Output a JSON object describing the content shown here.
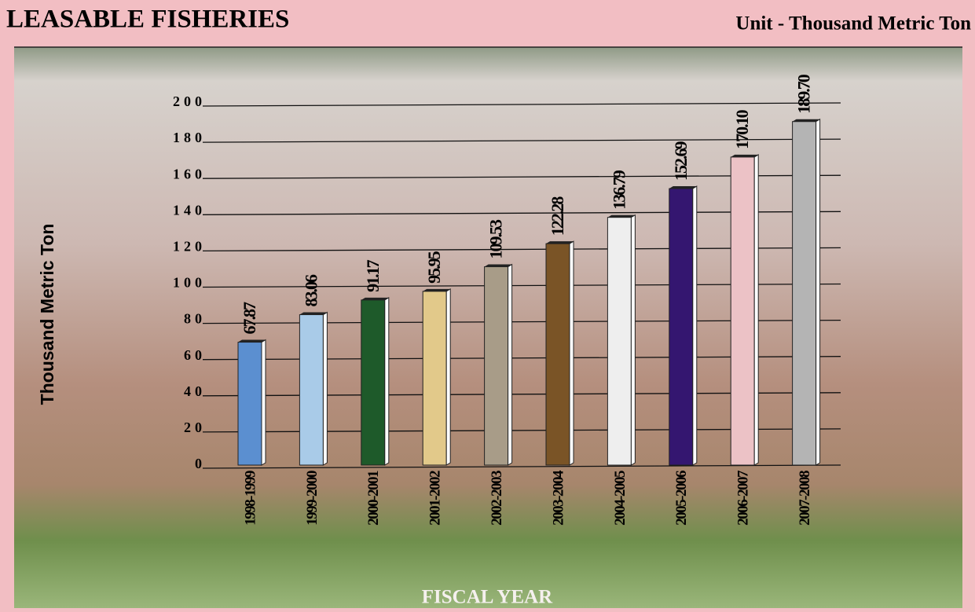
{
  "chart_data": {
    "type": "bar",
    "title": "LEASABLE FISHERIES",
    "subtitle": "Unit - Thousand  Metric Ton",
    "y_label": "Thousand Metric Ton",
    "x_label": "FISCAL YEAR",
    "categories": [
      "1998-1999",
      "1999-2000",
      "2000-2001",
      "2001-2002",
      "2002-2003",
      "2003-2004",
      "2004-2005",
      "2005-2006",
      "2006-2007",
      "2007-2008"
    ],
    "values": [
      67.87,
      83.06,
      91.17,
      95.95,
      109.53,
      122.28,
      136.79,
      152.69,
      170.1,
      189.7
    ],
    "value_labels": [
      "67.87",
      "83.06",
      "91.17",
      "95.95",
      "109.53",
      "122.28",
      "136.79",
      "152.69",
      "170.10",
      "189.70"
    ],
    "colors": [
      "#5b8fd0",
      "#a9cbe8",
      "#1e5a2a",
      "#e2c98a",
      "#a89c88",
      "#7a5426",
      "#eeeeee",
      "#341670",
      "#ecc2c6",
      "#b4b4b4"
    ],
    "ylim": [
      0,
      200
    ],
    "yticks": [
      0,
      20,
      40,
      60,
      80,
      100,
      120,
      140,
      160,
      180,
      200
    ],
    "grid": true
  }
}
